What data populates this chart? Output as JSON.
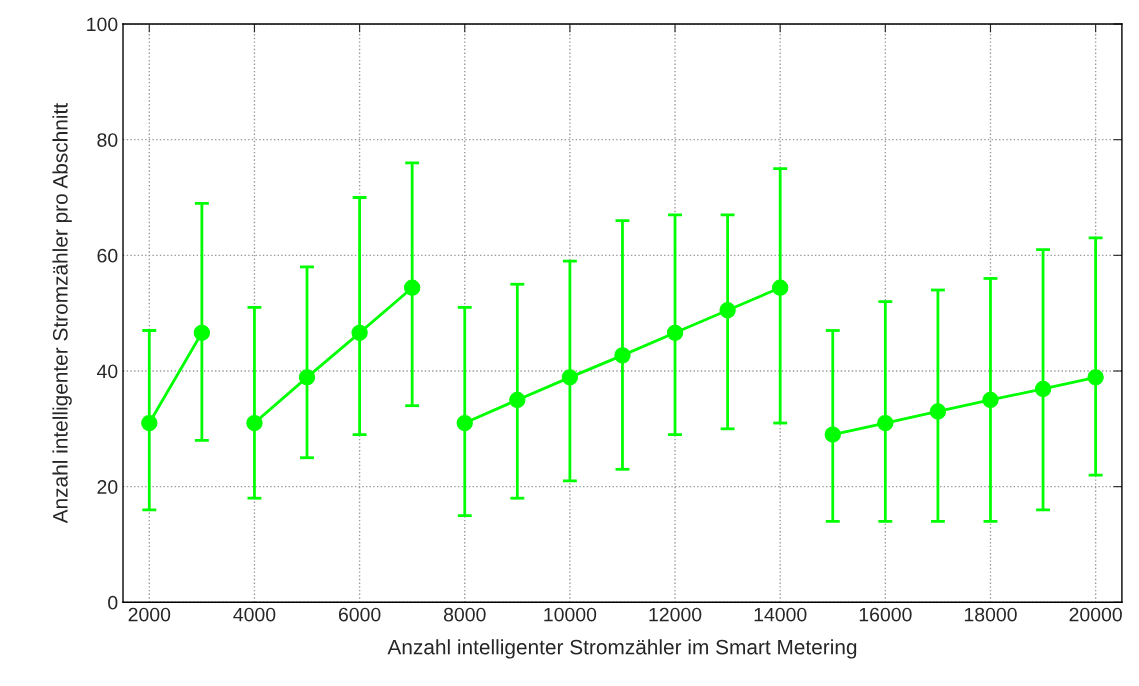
{
  "chart_data": {
    "type": "line",
    "xlabel": "Anzahl intelligenter Stromzähler im Smart Metering",
    "ylabel": "Anzahl intelligenter Stromzähler pro Abschnitt",
    "series": [
      {
        "color": "#00ff00",
        "x": [
          2000,
          3000
        ],
        "values": [
          31,
          46.6
        ],
        "errors": [
          [
            16,
            47
          ],
          [
            28,
            69
          ]
        ]
      },
      {
        "color": "#00ff00",
        "x": [
          4000,
          5000,
          6000,
          7000
        ],
        "values": [
          31,
          38.9,
          46.6,
          54.4
        ],
        "errors": [
          [
            18,
            51
          ],
          [
            25,
            58
          ],
          [
            29,
            70
          ],
          [
            34,
            76
          ]
        ]
      },
      {
        "color": "#00ff00",
        "x": [
          8000,
          9000,
          10000,
          11000,
          12000,
          13000,
          14000
        ],
        "values": [
          31,
          35,
          38.9,
          42.7,
          46.6,
          50.5,
          54.4
        ],
        "errors": [
          [
            15,
            51
          ],
          [
            18,
            55
          ],
          [
            21,
            59
          ],
          [
            23,
            66
          ],
          [
            29,
            67
          ],
          [
            30,
            67
          ],
          [
            31,
            75
          ]
        ]
      },
      {
        "color": "#00ff00",
        "x": [
          15000,
          16000,
          17000,
          18000,
          19000,
          20000
        ],
        "values": [
          29,
          31,
          33,
          35,
          36.9,
          38.9
        ],
        "errors": [
          [
            14,
            47
          ],
          [
            14,
            52
          ],
          [
            14,
            54
          ],
          [
            14,
            56
          ],
          [
            16,
            61
          ],
          [
            22,
            63
          ]
        ]
      }
    ],
    "xlim": [
      1500,
      20500
    ],
    "xticks": [
      2000,
      4000,
      6000,
      8000,
      10000,
      12000,
      14000,
      16000,
      18000,
      20000
    ],
    "ylim": [
      0,
      100
    ],
    "yticks": [
      0,
      20,
      40,
      60,
      80,
      100
    ],
    "grid": true,
    "marker": "circle",
    "line_style": "solid"
  }
}
